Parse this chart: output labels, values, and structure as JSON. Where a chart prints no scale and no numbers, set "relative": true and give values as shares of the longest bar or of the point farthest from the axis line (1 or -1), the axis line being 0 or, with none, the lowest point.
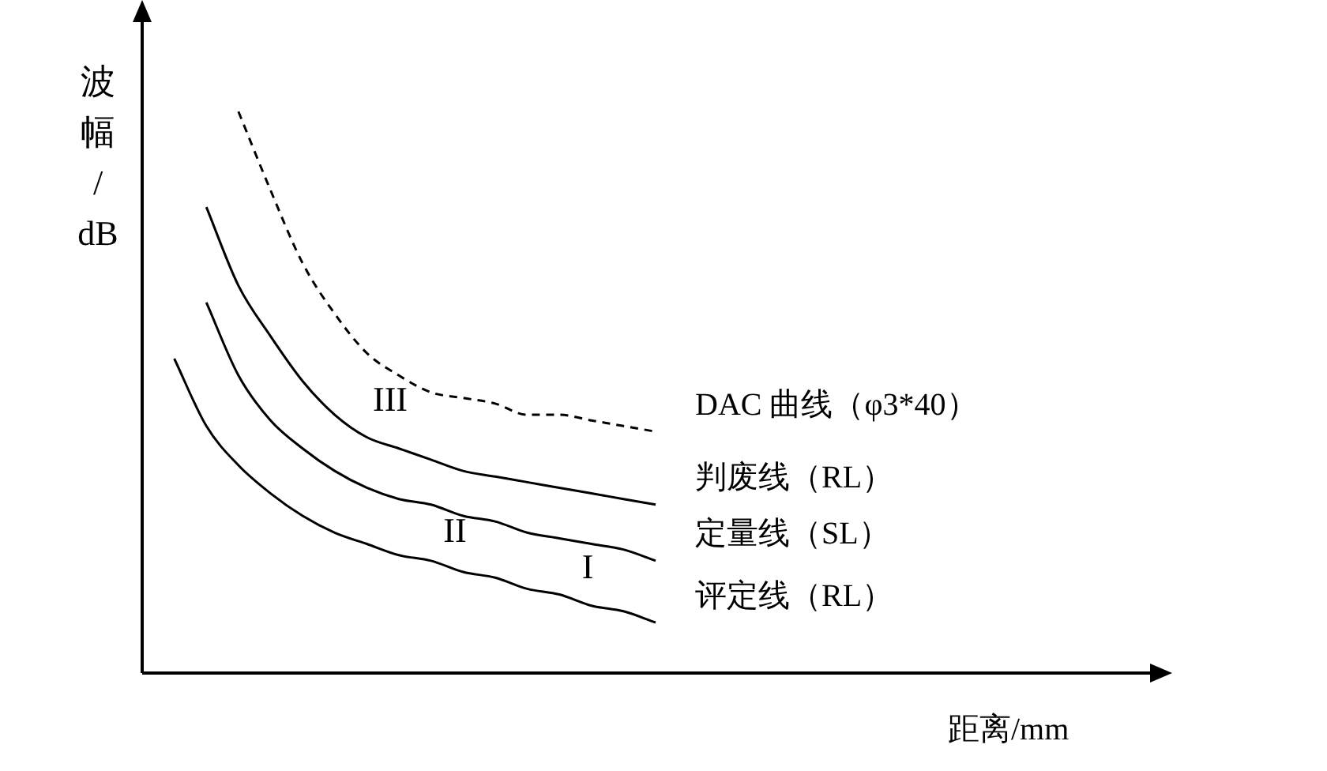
{
  "chart_data": {
    "type": "line",
    "relative": true,
    "ylabel": "波幅/dB",
    "xlabel": "距离/mm",
    "legend": false,
    "marker": "none",
    "categories": [
      null,
      null,
      null,
      null,
      null,
      null,
      null,
      null,
      null,
      null,
      null,
      null,
      null,
      null,
      null,
      null,
      null,
      null,
      null,
      null,
      null,
      null,
      null,
      null,
      null,
      null,
      null,
      null,
      null,
      null,
      null,
      null,
      null
    ],
    "series": [
      {
        "name": "DAC 曲线（φ3*40）",
        "color": "#000000",
        "line_style": "dashed",
        "values": [
          null,
          null,
          null,
          1.0,
          0.86,
          0.73,
          0.64,
          0.57,
          0.53,
          0.5,
          0.49,
          0.48,
          0.46,
          0.46,
          0.45,
          0.44,
          0.43,
          null,
          null,
          null,
          null,
          null,
          null,
          null,
          null,
          null,
          null,
          null,
          null,
          null,
          null,
          null,
          null
        ]
      },
      {
        "name": "判废线（RL）",
        "color": "#000000",
        "line_style": "solid",
        "values": [
          null,
          null,
          0.83,
          0.69,
          0.6,
          0.52,
          0.46,
          0.42,
          0.4,
          0.38,
          0.36,
          0.35,
          0.34,
          0.33,
          0.32,
          0.31,
          0.3,
          null,
          null,
          null,
          null,
          null,
          null,
          null,
          null,
          null,
          null,
          null,
          null,
          null,
          null,
          null,
          null
        ]
      },
      {
        "name": "定量线（SL）",
        "color": "#000000",
        "line_style": "solid",
        "values": [
          null,
          null,
          0.66,
          0.53,
          0.45,
          0.4,
          0.36,
          0.33,
          0.31,
          0.3,
          0.28,
          0.27,
          0.25,
          0.24,
          0.23,
          0.22,
          0.2,
          null,
          null,
          null,
          null,
          null,
          null,
          null,
          null,
          null,
          null,
          null,
          null,
          null,
          null,
          null,
          null
        ]
      },
      {
        "name": "评定线（RL）",
        "color": "#000000",
        "line_style": "solid",
        "values": [
          null,
          0.56,
          0.44,
          0.37,
          0.32,
          0.28,
          0.25,
          0.23,
          0.21,
          0.2,
          0.18,
          0.17,
          0.15,
          0.14,
          0.12,
          0.11,
          0.09,
          null,
          null,
          null,
          null,
          null,
          null,
          null,
          null,
          null,
          null,
          null,
          null,
          null,
          null,
          null,
          null
        ]
      }
    ],
    "annotations": [
      "III",
      "II",
      "I"
    ]
  }
}
